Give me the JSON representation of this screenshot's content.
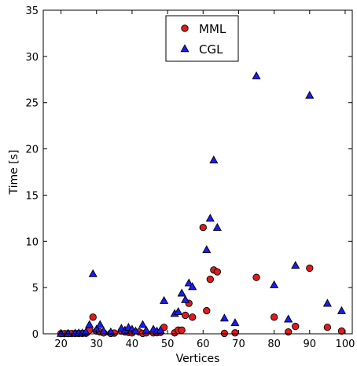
{
  "chart_data": {
    "type": "scatter",
    "title": "",
    "xlabel": "Vertices",
    "ylabel": "Time [s]",
    "xlim": [
      15,
      102
    ],
    "ylim": [
      0,
      35
    ],
    "xticks": [
      20,
      30,
      40,
      50,
      60,
      70,
      80,
      90,
      100
    ],
    "yticks": [
      0,
      5,
      10,
      15,
      20,
      25,
      30,
      35
    ],
    "grid": false,
    "legend_position": "top-center",
    "series": [
      {
        "name": "MML",
        "marker": "circle",
        "color": "#e31a1c",
        "points": [
          [
            20,
            0.02
          ],
          [
            21,
            0.02
          ],
          [
            22,
            0.03
          ],
          [
            23,
            0.03
          ],
          [
            24,
            0.04
          ],
          [
            25,
            0.04
          ],
          [
            26,
            0.05
          ],
          [
            27,
            0.06
          ],
          [
            28,
            0.4
          ],
          [
            29,
            1.8
          ],
          [
            30,
            0.3
          ],
          [
            31,
            0.2
          ],
          [
            32,
            0.1
          ],
          [
            34,
            0.05
          ],
          [
            35,
            0.08
          ],
          [
            37,
            0.3
          ],
          [
            38,
            0.2
          ],
          [
            39,
            0.15
          ],
          [
            40,
            0.1
          ],
          [
            42,
            0.2
          ],
          [
            43,
            0.05
          ],
          [
            44,
            0.1
          ],
          [
            46,
            0.1
          ],
          [
            47,
            0.12
          ],
          [
            48,
            0.15
          ],
          [
            49,
            0.7
          ],
          [
            52,
            0.1
          ],
          [
            53,
            0.4
          ],
          [
            54,
            0.4
          ],
          [
            55,
            2.0
          ],
          [
            56,
            3.3
          ],
          [
            57,
            1.8
          ],
          [
            60,
            11.5
          ],
          [
            61,
            2.5
          ],
          [
            62,
            5.9
          ],
          [
            63,
            6.9
          ],
          [
            64,
            6.7
          ],
          [
            66,
            0.05
          ],
          [
            69,
            0.1
          ],
          [
            75,
            6.1
          ],
          [
            80,
            1.8
          ],
          [
            84,
            0.2
          ],
          [
            86,
            0.8
          ],
          [
            90,
            7.1
          ],
          [
            95,
            0.7
          ],
          [
            99,
            0.3
          ]
        ]
      },
      {
        "name": "CGL",
        "marker": "triangle",
        "color": "#1a1aff",
        "points": [
          [
            20,
            0.05
          ],
          [
            22,
            0.05
          ],
          [
            24,
            0.08
          ],
          [
            25,
            0.1
          ],
          [
            26,
            0.1
          ],
          [
            27,
            0.2
          ],
          [
            28,
            1.0
          ],
          [
            29,
            6.5
          ],
          [
            30,
            0.5
          ],
          [
            31,
            1.0
          ],
          [
            32,
            0.3
          ],
          [
            34,
            0.2
          ],
          [
            37,
            0.6
          ],
          [
            38,
            0.4
          ],
          [
            39,
            0.7
          ],
          [
            40,
            0.5
          ],
          [
            41,
            0.3
          ],
          [
            43,
            1.0
          ],
          [
            44,
            0.4
          ],
          [
            46,
            0.5
          ],
          [
            47,
            0.3
          ],
          [
            48,
            0.4
          ],
          [
            49,
            3.6
          ],
          [
            52,
            2.2
          ],
          [
            53,
            2.4
          ],
          [
            54,
            4.4
          ],
          [
            55,
            3.7
          ],
          [
            56,
            5.5
          ],
          [
            57,
            5.1
          ],
          [
            61,
            9.1
          ],
          [
            62,
            12.5
          ],
          [
            63,
            18.8
          ],
          [
            64,
            11.5
          ],
          [
            66,
            1.7
          ],
          [
            69,
            1.2
          ],
          [
            75,
            27.9
          ],
          [
            80,
            5.3
          ],
          [
            84,
            1.6
          ],
          [
            86,
            7.4
          ],
          [
            90,
            25.8
          ],
          [
            95,
            3.3
          ],
          [
            99,
            2.5
          ]
        ]
      }
    ]
  }
}
